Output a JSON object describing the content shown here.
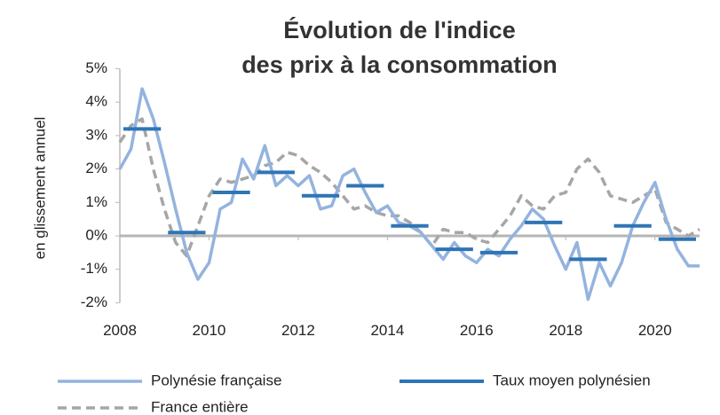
{
  "chart_data": {
    "type": "line",
    "title": [
      "Évolution de l'indice",
      "des prix à la consommation"
    ],
    "ylabel": "en glissement annuel",
    "xlim": [
      2008,
      2021
    ],
    "xticks": [
      2008,
      2010,
      2012,
      2014,
      2016,
      2018,
      2020
    ],
    "ylim": [
      -2,
      5
    ],
    "yticks": [
      {
        "value": -2,
        "label": "-2%"
      },
      {
        "value": -1,
        "label": "-1%"
      },
      {
        "value": 0,
        "label": "0%"
      },
      {
        "value": 1,
        "label": "1%"
      },
      {
        "value": 2,
        "label": "2%"
      },
      {
        "value": 3,
        "label": "3%"
      },
      {
        "value": 4,
        "label": "4%"
      },
      {
        "value": 5,
        "label": "5%"
      }
    ],
    "series": [
      {
        "name": "Polynésie française",
        "color": "#94b3de",
        "style": "solid",
        "x": [
          2008.0,
          2008.25,
          2008.5,
          2008.75,
          2009.0,
          2009.25,
          2009.5,
          2009.75,
          2010.0,
          2010.25,
          2010.5,
          2010.75,
          2011.0,
          2011.25,
          2011.5,
          2011.75,
          2012.0,
          2012.25,
          2012.5,
          2012.75,
          2013.0,
          2013.25,
          2013.5,
          2013.75,
          2014.0,
          2014.25,
          2014.5,
          2014.75,
          2015.0,
          2015.25,
          2015.5,
          2015.75,
          2016.0,
          2016.25,
          2016.5,
          2016.75,
          2017.0,
          2017.25,
          2017.5,
          2017.75,
          2018.0,
          2018.25,
          2018.5,
          2018.75,
          2019.0,
          2019.25,
          2019.5,
          2019.75,
          2020.0,
          2020.25,
          2020.5,
          2020.75,
          2021.0
        ],
        "values": [
          2.0,
          2.6,
          4.4,
          3.5,
          2.2,
          0.8,
          -0.5,
          -1.3,
          -0.8,
          0.8,
          1.0,
          2.3,
          1.7,
          2.7,
          1.5,
          1.8,
          1.5,
          1.8,
          0.8,
          0.9,
          1.8,
          2.0,
          1.3,
          0.7,
          0.9,
          0.4,
          0.3,
          0.1,
          -0.3,
          -0.7,
          -0.2,
          -0.6,
          -0.8,
          -0.4,
          -0.6,
          -0.1,
          0.3,
          0.8,
          0.5,
          -0.3,
          -1.0,
          -0.2,
          -1.9,
          -0.8,
          -1.5,
          -0.8,
          0.3,
          1.0,
          1.6,
          0.5,
          -0.4,
          -0.9,
          -0.9
        ]
      },
      {
        "name": "Taux moyen polynésien",
        "color": "#2e75b6",
        "style": "segments",
        "x": [
          2008,
          2009,
          2010,
          2011,
          2012,
          2013,
          2014,
          2015,
          2016,
          2017,
          2018,
          2019,
          2020
        ],
        "values": [
          3.2,
          0.1,
          1.3,
          1.9,
          1.2,
          1.5,
          0.3,
          -0.4,
          -0.5,
          0.4,
          -0.7,
          0.3,
          -0.1
        ]
      },
      {
        "name": "France entière",
        "color": "#a6a6a6",
        "style": "dashed",
        "x": [
          2008.0,
          2008.25,
          2008.5,
          2008.75,
          2009.0,
          2009.25,
          2009.5,
          2009.75,
          2010.0,
          2010.25,
          2010.5,
          2010.75,
          2011.0,
          2011.25,
          2011.5,
          2011.75,
          2012.0,
          2012.25,
          2012.5,
          2012.75,
          2013.0,
          2013.25,
          2013.5,
          2013.75,
          2014.0,
          2014.25,
          2014.5,
          2014.75,
          2015.0,
          2015.25,
          2015.5,
          2015.75,
          2016.0,
          2016.25,
          2016.5,
          2016.75,
          2017.0,
          2017.25,
          2017.5,
          2017.75,
          2018.0,
          2018.25,
          2018.5,
          2018.75,
          2019.0,
          2019.25,
          2019.5,
          2019.75,
          2020.0,
          2020.25,
          2020.5,
          2020.75,
          2021.0
        ],
        "values": [
          2.8,
          3.3,
          3.5,
          2.0,
          0.8,
          -0.2,
          -0.6,
          0.3,
          1.2,
          1.7,
          1.6,
          1.7,
          1.8,
          2.1,
          2.2,
          2.5,
          2.4,
          2.1,
          1.9,
          1.6,
          1.2,
          0.8,
          0.9,
          0.7,
          0.6,
          0.6,
          0.4,
          0.1,
          -0.3,
          0.2,
          0.1,
          0.1,
          -0.1,
          -0.2,
          0.2,
          0.6,
          1.2,
          0.9,
          0.8,
          1.2,
          1.3,
          2.0,
          2.3,
          1.9,
          1.2,
          1.1,
          1.0,
          1.2,
          1.4,
          0.4,
          0.2,
          0.0,
          0.2
        ]
      }
    ]
  }
}
